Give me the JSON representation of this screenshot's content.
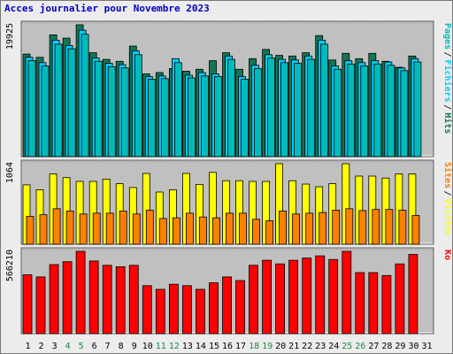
{
  "title": "Acces journalier pour Novembre 2023",
  "colors": {
    "background": "#ececec",
    "panel": "#c0c0c0",
    "visits": "#ffff00",
    "sites": "#ff8000",
    "pages": "#00bbbb",
    "files": "#00ccff",
    "hits": "#117755",
    "kbytes": "#ff0000",
    "weekend_day": "#228844",
    "weekday": "#000000",
    "title": "#0000c0"
  },
  "chart_data": {
    "type": "bar",
    "title": "Acces journalier pour Novembre 2023",
    "categories": [
      "1",
      "2",
      "3",
      "4",
      "5",
      "6",
      "7",
      "8",
      "9",
      "10",
      "11",
      "12",
      "13",
      "14",
      "15",
      "16",
      "17",
      "18",
      "19",
      "20",
      "21",
      "22",
      "23",
      "24",
      "25",
      "26",
      "27",
      "28",
      "29",
      "30",
      "31"
    ],
    "weekend_days": [
      "4",
      "5",
      "11",
      "12",
      "18",
      "19",
      "25",
      "26"
    ],
    "panels": [
      {
        "id": "hits_files_pages",
        "max_label": "19925",
        "ylim": [
          0,
          19925
        ],
        "right_labels": [
          {
            "text": "Pages",
            "color": "#00bbbb"
          },
          {
            "text": "Fichiers",
            "color": "#00ccff"
          },
          {
            "text": "Hits",
            "color": "#117755"
          }
        ],
        "series": [
          {
            "name": "Hits",
            "color": "#117755",
            "values": [
              15500,
              15000,
              18400,
              17900,
              19925,
              15700,
              14700,
              14400,
              16700,
              12500,
              12700,
              13300,
              12900,
              13200,
              14500,
              15700,
              13200,
              14800,
              16200,
              15300,
              15200,
              15700,
              18300,
              14600,
              15600,
              14800,
              15600,
              14400,
              13500,
              15200,
              null
            ]
          },
          {
            "name": "Fichiers",
            "color": "#00ccff",
            "values": [
              15000,
              14200,
              17600,
              16800,
              19100,
              14900,
              14100,
              13900,
              16000,
              12100,
              12200,
              14800,
              12300,
              12700,
              12500,
              15200,
              12100,
              13800,
              15400,
              14700,
              14600,
              15200,
              17600,
              13700,
              14500,
              14200,
              14500,
              14300,
              13400,
              14800,
              null
            ]
          },
          {
            "name": "Pages",
            "color": "#00bbbb",
            "values": [
              14500,
              13700,
              17000,
              16300,
              18500,
              14400,
              13600,
              13400,
              15400,
              11700,
              11800,
              14200,
              11900,
              12200,
              12100,
              14700,
              11700,
              13300,
              14900,
              14200,
              14100,
              14700,
              17000,
              13200,
              14000,
              13700,
              14000,
              13800,
              13000,
              14300,
              null
            ]
          }
        ]
      },
      {
        "id": "visits_sites",
        "max_label": "1064",
        "ylim": [
          0,
          1064
        ],
        "right_labels": [
          {
            "text": "Sites",
            "color": "#ff8000"
          },
          {
            "text": "Visites",
            "color": "#ffff00"
          }
        ],
        "series": [
          {
            "name": "Visites",
            "color": "#ffff00",
            "values": [
              785,
              720,
              930,
              880,
              830,
              830,
              860,
              800,
              750,
              935,
              690,
              720,
              935,
              790,
              950,
              840,
              840,
              830,
              830,
              1064,
              840,
              795,
              760,
              800,
              1064,
              900,
              900,
              875,
              930,
              930,
              null
            ]
          },
          {
            "name": "Sites",
            "color": "#ff8000",
            "values": [
              370,
              390,
              470,
              440,
              400,
              410,
              410,
              440,
              400,
              450,
              340,
              350,
              410,
              360,
              350,
              410,
              410,
              330,
              310,
              440,
              400,
              410,
              420,
              450,
              470,
              445,
              460,
              460,
              450,
              380,
              null
            ]
          }
        ]
      },
      {
        "id": "kbytes",
        "max_label": "566210",
        "ylim": [
          0,
          566210
        ],
        "right_labels": [
          {
            "text": "Ko",
            "color": "#ff0000"
          }
        ],
        "series": [
          {
            "name": "Ko",
            "color": "#ff0000",
            "values": [
              405000,
              390000,
              475000,
              495000,
              566210,
              500000,
              470000,
              460000,
              470000,
              330000,
              305000,
              340000,
              330000,
              305000,
              350000,
              390000,
              365000,
              470000,
              505000,
              480000,
              505000,
              520000,
              535000,
              510000,
              566210,
              420000,
              420000,
              400000,
              480000,
              545000,
              null
            ]
          }
        ]
      }
    ]
  }
}
